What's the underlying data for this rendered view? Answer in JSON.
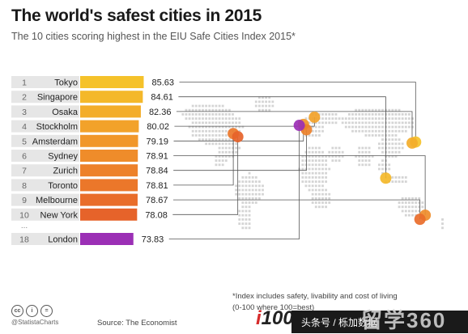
{
  "title": "The world's safest cities in 2015",
  "subtitle": "The 10 cities scoring highest in the EIU Safe Cities Index 2015*",
  "footnote_line1": "*Index includes safety, livability and cost of living",
  "footnote_line2": "(0-100 where 100=best)",
  "statista_label": "@StatistaCharts",
  "source": "Source: The Economist",
  "logo_text": "100",
  "logo_i": "i",
  "watermark_text": "头条号 / 栎加数据",
  "watermark_big": "留学360",
  "ellipsis": "...",
  "cc_icons": [
    "cc-icon",
    "by-icon",
    "nd-icon"
  ],
  "colors": {
    "top": "#f5c518",
    "bottom": "#e05a2a",
    "london": "#9b2fb5",
    "rank_bg": "#e6e6e6",
    "map_dot": "#d4d4d4"
  },
  "chart_data": {
    "type": "bar",
    "orientation": "horizontal",
    "title": "The world's safest cities in 2015",
    "subtitle": "The 10 cities scoring highest in the EIU Safe Cities Index 2015*",
    "xlim": [
      0,
      100
    ],
    "categories": [
      "Tokyo",
      "Singapore",
      "Osaka",
      "Stockholm",
      "Amsterdam",
      "Sydney",
      "Zurich",
      "Toronto",
      "Melbourne",
      "New York",
      "London"
    ],
    "ranks": [
      "1",
      "2",
      "3",
      "4",
      "5",
      "6",
      "7",
      "8",
      "9",
      "10",
      "18"
    ],
    "values": [
      85.63,
      84.61,
      82.36,
      80.02,
      79.19,
      78.91,
      78.84,
      78.81,
      78.67,
      78.08,
      73.83
    ],
    "value_labels": [
      "85.63",
      "84.61",
      "82.36",
      "80.02",
      "79.19",
      "78.91",
      "78.84",
      "78.81",
      "78.67",
      "78.08",
      "73.83"
    ],
    "bar_colors": [
      "#f5c22a",
      "#f4b82a",
      "#f3ad2a",
      "#f2a22a",
      "#f1972a",
      "#ef8c2a",
      "#ed812a",
      "#eb772a",
      "#e96d2a",
      "#e6632a",
      "#9b2fb5"
    ],
    "map_markers": [
      {
        "city": "Tokyo",
        "lon": 139.7,
        "lat": 35.7,
        "color": "#f5c22a"
      },
      {
        "city": "Singapore",
        "lon": 103.8,
        "lat": 1.35,
        "color": "#f4b82a"
      },
      {
        "city": "Osaka",
        "lon": 135.5,
        "lat": 34.7,
        "color": "#f3ad2a"
      },
      {
        "city": "Stockholm",
        "lon": 18.1,
        "lat": 59.3,
        "color": "#f2a22a"
      },
      {
        "city": "Amsterdam",
        "lon": 4.9,
        "lat": 52.4,
        "color": "#f1972a"
      },
      {
        "city": "Sydney",
        "lon": 151.2,
        "lat": -33.9,
        "color": "#ef8c2a"
      },
      {
        "city": "Zurich",
        "lon": 8.5,
        "lat": 47.4,
        "color": "#ed812a"
      },
      {
        "city": "Toronto",
        "lon": -79.4,
        "lat": 43.7,
        "color": "#eb772a"
      },
      {
        "city": "Melbourne",
        "lon": 144.9,
        "lat": -37.8,
        "color": "#e96d2a"
      },
      {
        "city": "New York",
        "lon": -74.0,
        "lat": 40.7,
        "color": "#e6632a"
      },
      {
        "city": "London",
        "lon": -0.1,
        "lat": 51.5,
        "color": "#9b2fb5"
      }
    ]
  }
}
